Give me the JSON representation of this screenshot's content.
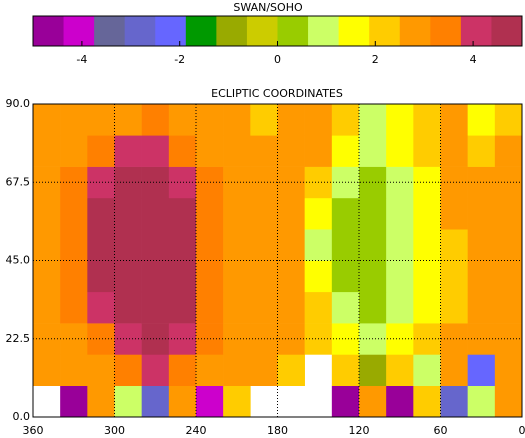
{
  "chart_data": {
    "type": "heatmap",
    "title": "ECLIPTIC COORDINATES",
    "colorbar": {
      "title": "SWAN/SOHO",
      "lim": [
        -5,
        5
      ],
      "ticks": [
        -4,
        -2,
        0,
        2,
        4
      ],
      "colors": [
        "#990099",
        "#cc00cc",
        "#666699",
        "#6666cc",
        "#6666ff",
        "#009900",
        "#99aa00",
        "#cccc00",
        "#99cc00",
        "#ccff66",
        "#ffff00",
        "#ffcc00",
        "#ff9900",
        "#ff8000",
        "#cc3366",
        "#b03050"
      ]
    },
    "x": [
      350,
      330,
      310,
      290,
      270,
      250,
      230,
      210,
      190,
      170,
      150,
      130,
      110,
      90,
      70,
      50,
      30,
      10
    ],
    "y": [
      4.5,
      13.5,
      22.5,
      31.5,
      40.5,
      49.5,
      58.5,
      67.5,
      76.5,
      85.5
    ],
    "values": [
      [
        null,
        -4.5,
        3,
        1,
        -3,
        2.5,
        -4,
        2,
        null,
        null,
        null,
        -4.9,
        3,
        -4.9,
        2,
        -3,
        1,
        3
      ],
      [
        2.5,
        3,
        3,
        3.5,
        4,
        3.5,
        3,
        3,
        2.5,
        2,
        null,
        2,
        -1,
        2,
        1,
        2.5,
        -2,
        3
      ],
      [
        3,
        3,
        3.5,
        4,
        4.5,
        4,
        3.5,
        3,
        3,
        2.5,
        2,
        1.5,
        1,
        1.5,
        2,
        2.5,
        2.5,
        3
      ],
      [
        3,
        3.5,
        4,
        4.5,
        4.5,
        4.5,
        3.5,
        3,
        3,
        2.5,
        2,
        1,
        0.5,
        1,
        1.5,
        2,
        2.5,
        2.5
      ],
      [
        3,
        3.5,
        4.5,
        4.5,
        4.5,
        4.5,
        3.5,
        3,
        3,
        2.5,
        1.5,
        0.5,
        0.5,
        1,
        1.5,
        2,
        2.5,
        2.5
      ],
      [
        3,
        3.5,
        4.5,
        4.5,
        4.5,
        4.5,
        3.5,
        3,
        3,
        2.5,
        1,
        0.5,
        0.5,
        1,
        1.5,
        2,
        2.5,
        2.5
      ],
      [
        3,
        3.5,
        4.5,
        4.5,
        4.5,
        4.5,
        3.5,
        3,
        3,
        2.5,
        1.5,
        0.5,
        0.5,
        1,
        1.5,
        2.5,
        2.5,
        2.5
      ],
      [
        3,
        3.5,
        4,
        4.5,
        4.5,
        4,
        3.5,
        3,
        3,
        2.5,
        2,
        1,
        0.5,
        1,
        1.5,
        2.5,
        2.5,
        2.5
      ],
      [
        3,
        3,
        3.5,
        4,
        4,
        3.5,
        3,
        3,
        2.5,
        2.5,
        2.5,
        1.5,
        1,
        1.5,
        2,
        2.5,
        2,
        2.5
      ],
      [
        3,
        3,
        2.5,
        3,
        3.5,
        3,
        3,
        2.5,
        2,
        3,
        2.5,
        2,
        1,
        1.5,
        2,
        2.5,
        1.5,
        2
      ]
    ],
    "xlim": [
      360,
      0
    ],
    "xticks": [
      360,
      300,
      240,
      180,
      120,
      60,
      0
    ],
    "ylim": [
      0,
      90
    ],
    "yticks": [
      {
        "value": 0,
        "label": "0.0"
      },
      22.5,
      {
        "value": 45,
        "label": "45.0"
      },
      67.5,
      {
        "value": 90,
        "label": "90.0"
      }
    ],
    "grid": true
  }
}
